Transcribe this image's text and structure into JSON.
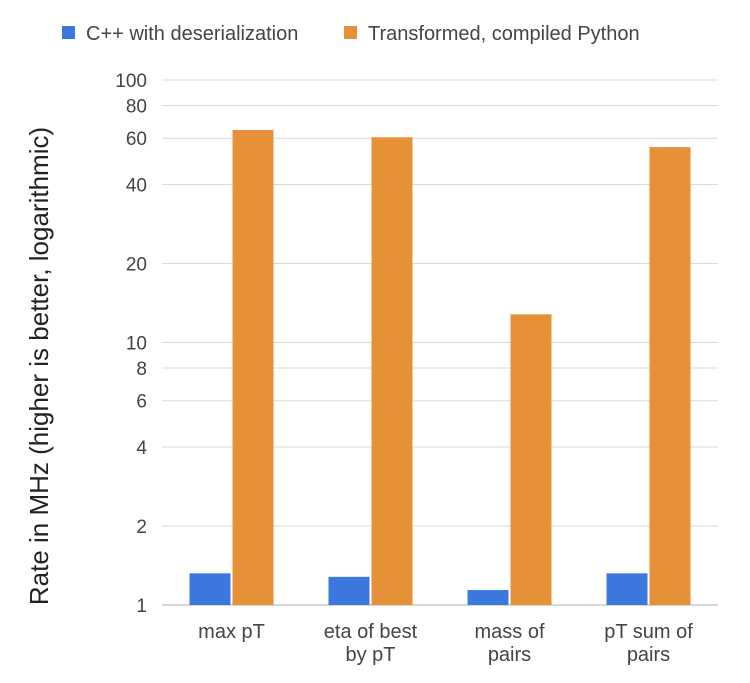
{
  "chart_data": {
    "type": "bar",
    "scale": "log",
    "ylabel": "Rate in MHz (higher is better, logarithmic)",
    "xlabel": "",
    "ylim": [
      1,
      100
    ],
    "yticks": [
      1,
      2,
      4,
      6,
      8,
      10,
      20,
      40,
      60,
      80,
      100
    ],
    "grid": true,
    "legend_position": "top",
    "categories": [
      [
        "max pT"
      ],
      [
        "eta of best",
        "by pT"
      ],
      [
        "mass of",
        "pairs"
      ],
      [
        "pT sum of",
        "pairs"
      ]
    ],
    "series": [
      {
        "name": "C++ with deserialization",
        "color": "#3b78de",
        "values": [
          1.32,
          1.28,
          1.14,
          1.32
        ]
      },
      {
        "name": "Transformed, compiled Python",
        "color": "#e69138",
        "values": [
          64.5,
          60.5,
          12.8,
          55.5
        ]
      }
    ]
  }
}
